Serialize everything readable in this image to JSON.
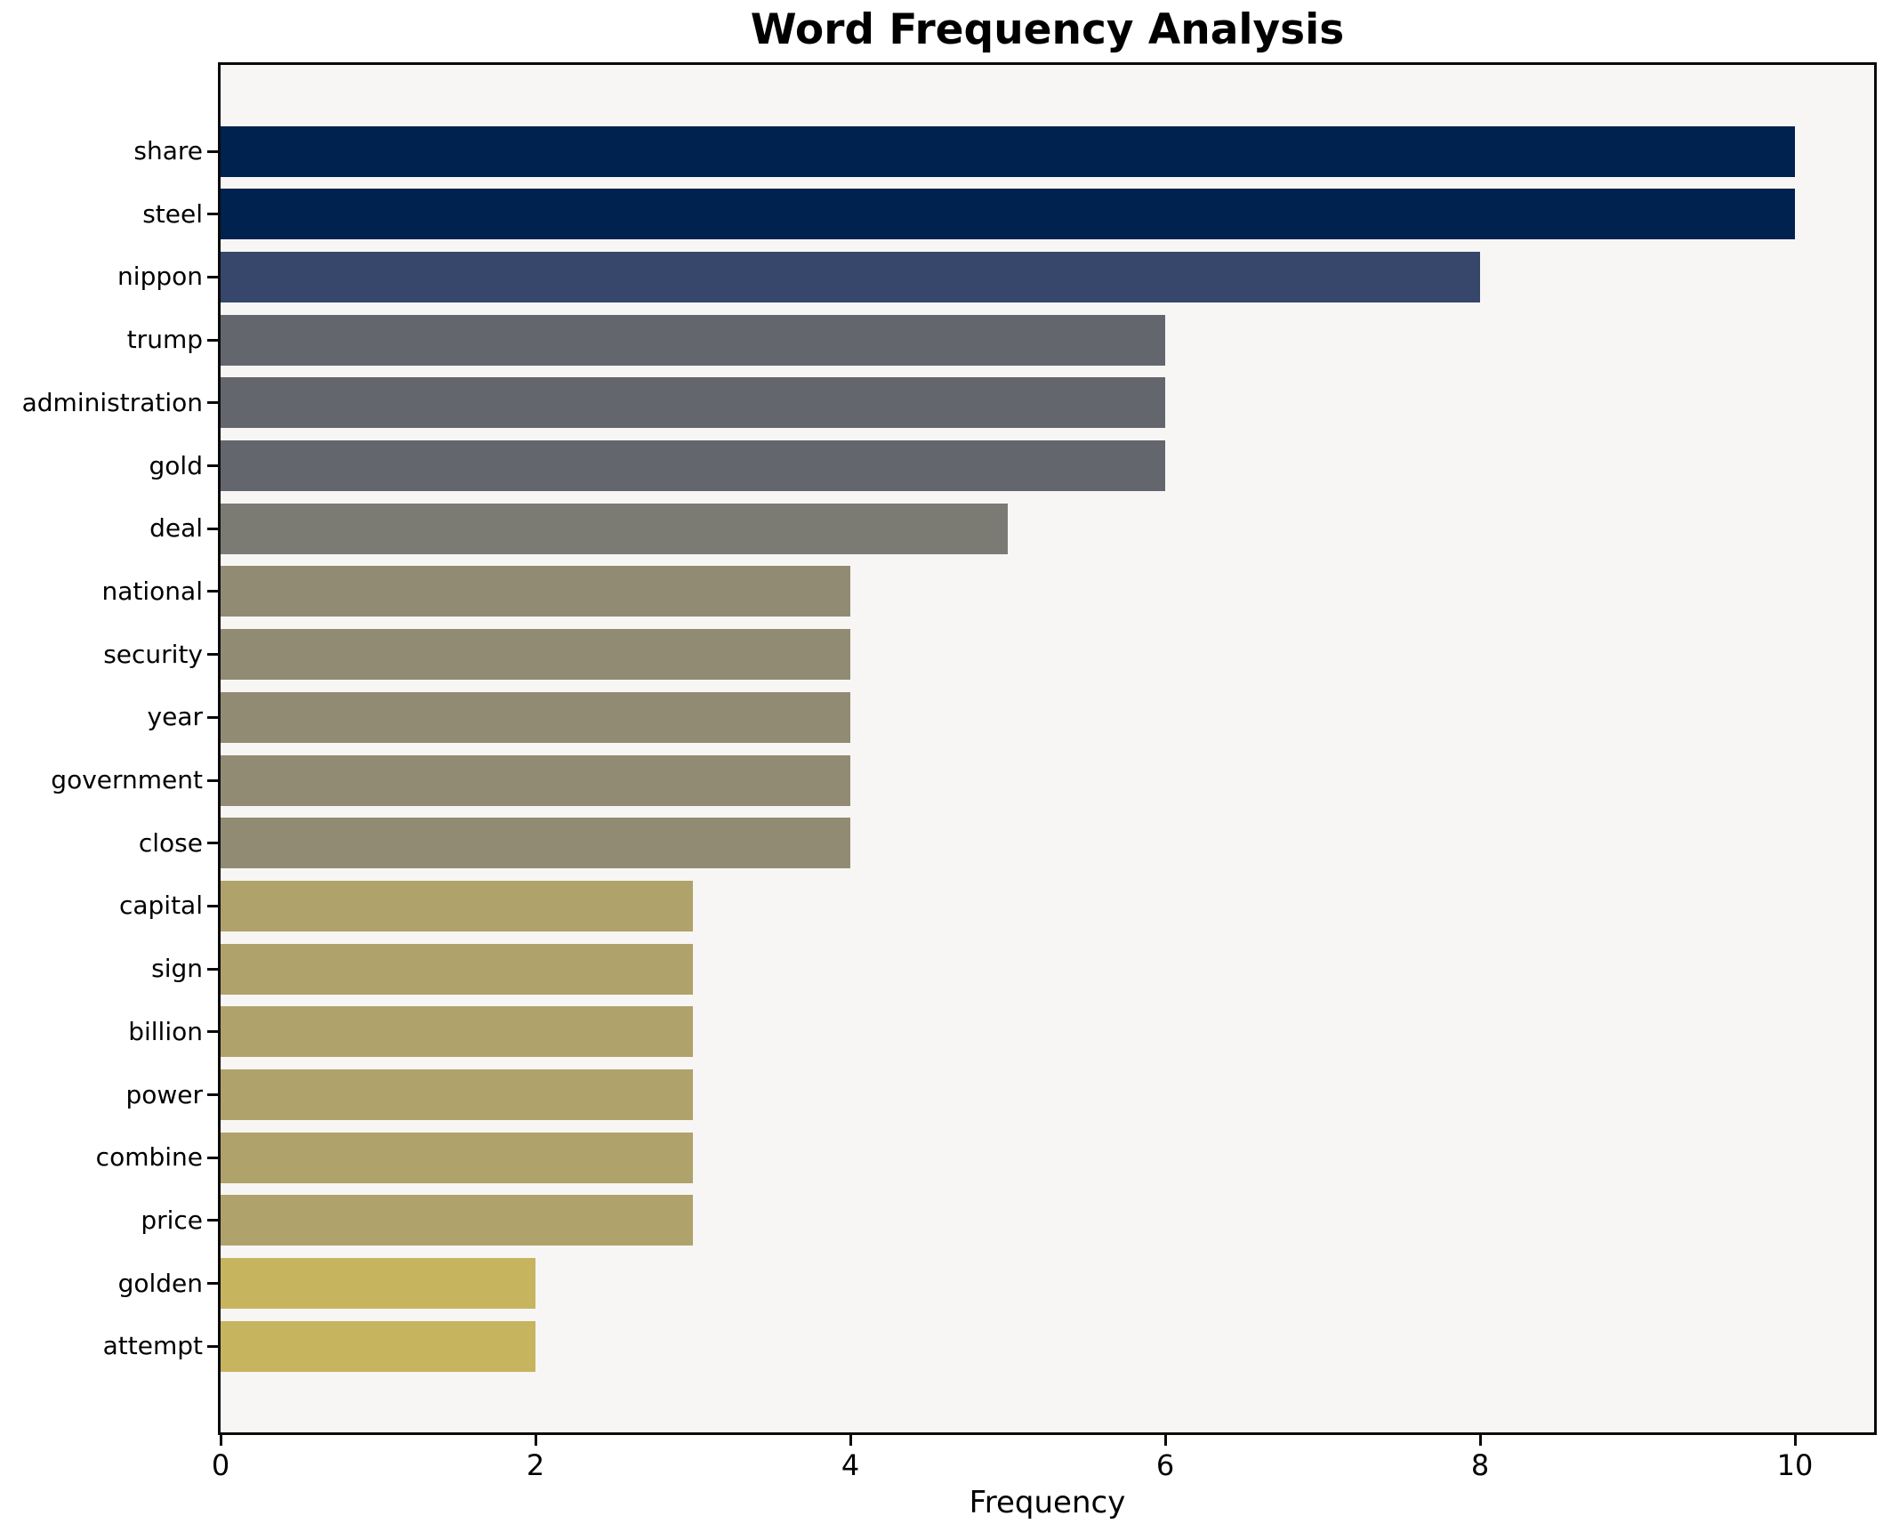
{
  "chart_data": {
    "type": "bar",
    "orientation": "horizontal",
    "title": "Word Frequency Analysis",
    "xlabel": "Frequency",
    "ylabel": "",
    "xlim": [
      0,
      10.5
    ],
    "x_ticks": [
      0,
      2,
      4,
      6,
      8,
      10
    ],
    "grid": false,
    "legend": "none",
    "plot_background": "#f7f6f4",
    "figure_background": "#ffffff",
    "axis_color": "#0a0a0a",
    "categories": [
      "share",
      "steel",
      "nippon",
      "trump",
      "administration",
      "gold",
      "deal",
      "national",
      "security",
      "year",
      "government",
      "close",
      "capital",
      "sign",
      "billion",
      "power",
      "combine",
      "price",
      "golden",
      "attempt"
    ],
    "values": [
      10,
      10,
      8,
      6,
      6,
      6,
      5,
      4,
      4,
      4,
      4,
      4,
      3,
      3,
      3,
      3,
      3,
      3,
      2,
      2
    ],
    "bar_colors": [
      "#00224e",
      "#00224e",
      "#36476b",
      "#63666d",
      "#63666d",
      "#63666d",
      "#7b7a73",
      "#928b74",
      "#928b74",
      "#928b74",
      "#928b74",
      "#928b74",
      "#afa26b",
      "#afa26b",
      "#afa26b",
      "#afa26b",
      "#afa26b",
      "#afa26b",
      "#c6b45f",
      "#c6b45f"
    ]
  }
}
